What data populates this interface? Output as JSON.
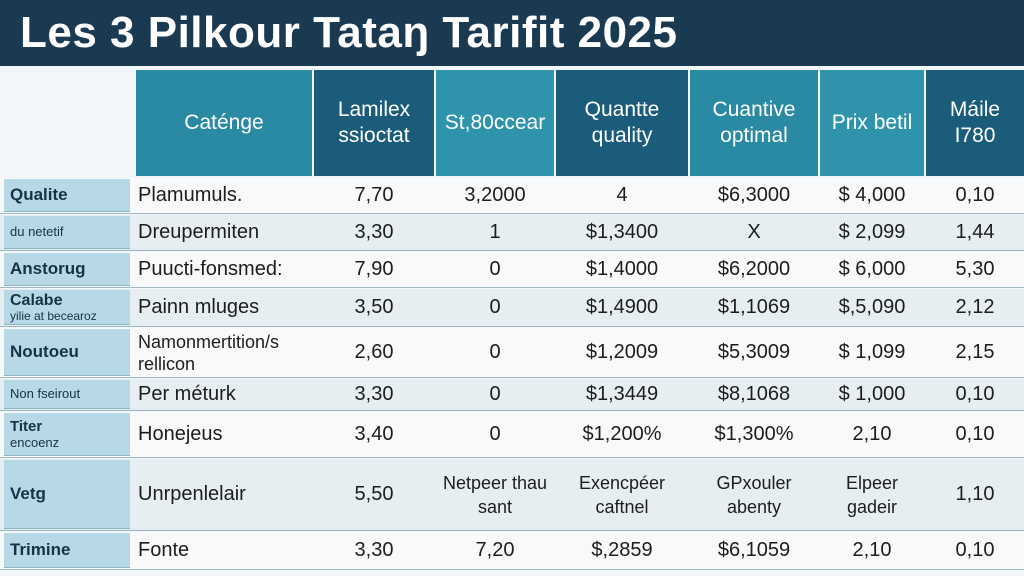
{
  "title": "Les 3 Pilkour Tataŋ Tarifit 2025",
  "headers": [
    "Caténge",
    "Lamilex ssioctat",
    "St,80ccear",
    "Quantte quality",
    "Cuantive optimal",
    "Prix betil",
    "Máile Ι780"
  ],
  "rows": [
    {
      "label": "Qualite",
      "label_sub": "",
      "cells": [
        "Plamumuls.",
        "7,70",
        "3,2000",
        "4",
        "$6,3000",
        "$ 4,000",
        "0,10"
      ]
    },
    {
      "label": "du netetif",
      "label_sub": "",
      "cells": [
        "Dreupermiten",
        "3,30",
        "1",
        "$1,3400",
        "X",
        "$ 2,099",
        "1,44"
      ]
    },
    {
      "label": "Anstorug",
      "label_sub": "",
      "cells": [
        "Puucti-fonsmed:",
        "7,90",
        "0",
        "$1,4000",
        "$6,2000",
        "$ 6,000",
        "5,30"
      ]
    },
    {
      "label": "Calabe",
      "label_sub": "yilie at becearoz",
      "cells": [
        "Painn mluges",
        "3,50",
        "0",
        "$1,4900",
        "$1,1069",
        "$,5,090",
        "2,12"
      ]
    },
    {
      "label": "Noutoeu",
      "label_sub": "",
      "cells": [
        "Namonmertition/s rellicon",
        "2,60",
        "0",
        "$1,2009",
        "$5,3009",
        "$ 1,099",
        "2,15"
      ]
    },
    {
      "label": "Non fseirout",
      "label_sub": "",
      "cells": [
        "Per méturk",
        "3,30",
        "0",
        "$1,3449",
        "$8,1068",
        "$ 1,000",
        "0,10"
      ]
    },
    {
      "label": "Titer",
      "label_sub": "encoenz",
      "cells": [
        "Honejeus",
        "3,40",
        "0",
        "$1,200%",
        "$1,300%",
        "2,10",
        "0,10"
      ]
    },
    {
      "label": "Vetg",
      "label_sub": "",
      "cells": [
        "Unrpenlelair",
        "5,50",
        "Netpeer thau sant",
        "Exencpéer caftnel",
        "GPxouler abenty",
        "Elpeer gadeir",
        "1,10"
      ]
    },
    {
      "label": "Trimine",
      "label_sub": "",
      "cells": [
        "Fonte",
        "3,30",
        "7,20",
        "$,2859",
        "$6,1059",
        "2,10",
        "0,10"
      ]
    }
  ]
}
